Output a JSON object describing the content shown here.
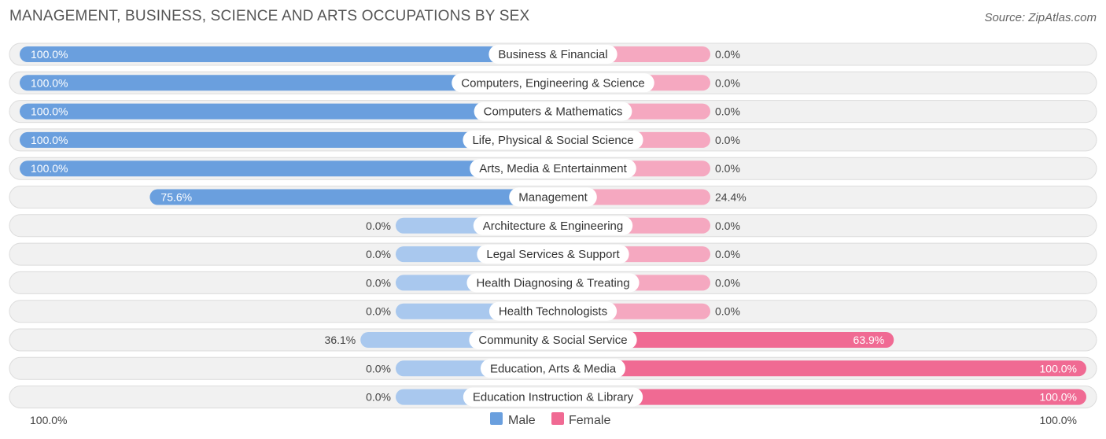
{
  "title": "MANAGEMENT, BUSINESS, SCIENCE AND ARTS OCCUPATIONS BY SEX",
  "source": "Source: ZipAtlas.com",
  "colors": {
    "male_strong": "#6a9fde",
    "male_light": "#a9c8ee",
    "female_strong": "#f06a93",
    "female_light": "#f5a8c0",
    "row_bg": "#f1f1f1",
    "row_border": "#dcdcdc"
  },
  "chart_data": {
    "type": "bar",
    "orientation": "horizontal-diverging",
    "title": "MANAGEMENT, BUSINESS, SCIENCE AND ARTS OCCUPATIONS BY SEX",
    "categories": [
      "Business & Financial",
      "Computers, Engineering & Science",
      "Computers & Mathematics",
      "Life, Physical & Social Science",
      "Arts, Media & Entertainment",
      "Management",
      "Architecture & Engineering",
      "Legal Services & Support",
      "Health Diagnosing & Treating",
      "Health Technologists",
      "Community & Social Service",
      "Education, Arts & Media",
      "Education Instruction & Library"
    ],
    "series": [
      {
        "name": "Male",
        "values": [
          100.0,
          100.0,
          100.0,
          100.0,
          100.0,
          75.6,
          0.0,
          0.0,
          0.0,
          0.0,
          36.1,
          0.0,
          0.0
        ],
        "labels": [
          "100.0%",
          "100.0%",
          "100.0%",
          "100.0%",
          "100.0%",
          "75.6%",
          "0.0%",
          "0.0%",
          "0.0%",
          "0.0%",
          "36.1%",
          "0.0%",
          "0.0%"
        ]
      },
      {
        "name": "Female",
        "values": [
          0.0,
          0.0,
          0.0,
          0.0,
          0.0,
          24.4,
          0.0,
          0.0,
          0.0,
          0.0,
          63.9,
          100.0,
          100.0
        ],
        "labels": [
          "0.0%",
          "0.0%",
          "0.0%",
          "0.0%",
          "0.0%",
          "24.4%",
          "0.0%",
          "0.0%",
          "0.0%",
          "0.0%",
          "63.9%",
          "100.0%",
          "100.0%"
        ]
      }
    ],
    "axis": {
      "left_label": "100.0%",
      "right_label": "100.0%",
      "range": [
        0,
        100
      ]
    },
    "legend": {
      "position": "bottom-center",
      "entries": [
        "Male",
        "Female"
      ]
    }
  }
}
